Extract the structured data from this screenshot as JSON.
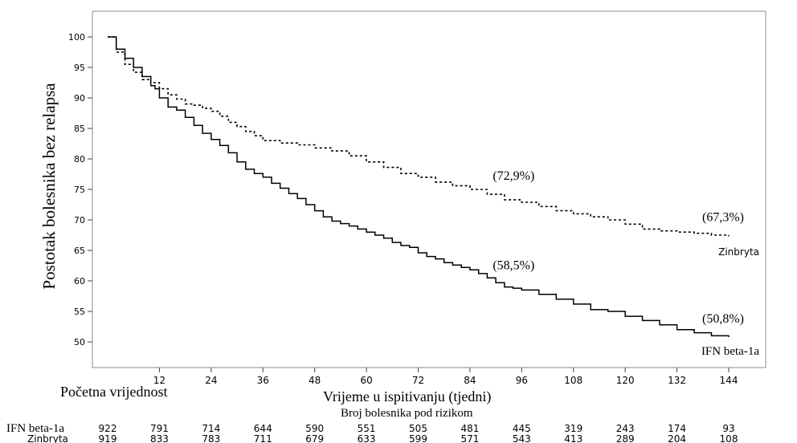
{
  "chart_data": {
    "type": "line",
    "ylabel": "Postotak bolesnika bez relapsa",
    "xlabel": "Vrijeme u ispitivanju (tjedni)",
    "baseline_label": "Početna vrijednost",
    "xlim": [
      0,
      144
    ],
    "ylim": [
      50,
      100
    ],
    "xticks": [
      12,
      24,
      36,
      48,
      60,
      72,
      84,
      96,
      108,
      120,
      132,
      144
    ],
    "yticks": [
      50,
      55,
      60,
      65,
      70,
      75,
      80,
      85,
      90,
      95,
      100
    ],
    "grid": false,
    "series": [
      {
        "name": "Zinbryta",
        "style": "dashed",
        "color": "#000000",
        "points": [
          [
            0,
            100
          ],
          [
            2,
            97.5
          ],
          [
            4,
            95.5
          ],
          [
            6,
            94.2
          ],
          [
            8,
            93
          ],
          [
            10,
            92.5
          ],
          [
            12,
            91.5
          ],
          [
            14,
            90.5
          ],
          [
            16,
            89.8
          ],
          [
            18,
            89
          ],
          [
            20,
            88.8
          ],
          [
            22,
            88.3
          ],
          [
            24,
            87.8
          ],
          [
            26,
            87
          ],
          [
            28,
            86
          ],
          [
            30,
            85.3
          ],
          [
            32,
            84.5
          ],
          [
            34,
            83.8
          ],
          [
            36,
            83
          ],
          [
            40,
            82.6
          ],
          [
            44,
            82.3
          ],
          [
            48,
            81.8
          ],
          [
            52,
            81.3
          ],
          [
            56,
            80.5
          ],
          [
            60,
            79.5
          ],
          [
            64,
            78.6
          ],
          [
            68,
            77.6
          ],
          [
            72,
            77
          ],
          [
            76,
            76.2
          ],
          [
            80,
            75.6
          ],
          [
            84,
            75
          ],
          [
            88,
            74.2
          ],
          [
            92,
            73.3
          ],
          [
            96,
            72.9
          ],
          [
            100,
            72.2
          ],
          [
            104,
            71.5
          ],
          [
            108,
            71
          ],
          [
            112,
            70.5
          ],
          [
            116,
            70
          ],
          [
            120,
            69.3
          ],
          [
            124,
            68.5
          ],
          [
            128,
            68.2
          ],
          [
            132,
            68
          ],
          [
            136,
            67.8
          ],
          [
            140,
            67.5
          ],
          [
            144,
            67.3
          ]
        ],
        "end_label": "Zinbryta"
      },
      {
        "name": "IFN beta-1a",
        "style": "solid",
        "color": "#000000",
        "points": [
          [
            0,
            100
          ],
          [
            2,
            98
          ],
          [
            4,
            96.5
          ],
          [
            6,
            95
          ],
          [
            8,
            93.5
          ],
          [
            10,
            92
          ],
          [
            11,
            91.5
          ],
          [
            12,
            90
          ],
          [
            14,
            88.5
          ],
          [
            16,
            88
          ],
          [
            18,
            86.8
          ],
          [
            20,
            85.5
          ],
          [
            22,
            84.2
          ],
          [
            24,
            83.2
          ],
          [
            26,
            82.2
          ],
          [
            28,
            81
          ],
          [
            30,
            79.5
          ],
          [
            32,
            78.3
          ],
          [
            34,
            77.6
          ],
          [
            36,
            77
          ],
          [
            38,
            76
          ],
          [
            40,
            75.2
          ],
          [
            42,
            74.3
          ],
          [
            44,
            73.5
          ],
          [
            46,
            72.5
          ],
          [
            48,
            71.5
          ],
          [
            50,
            70.5
          ],
          [
            52,
            69.8
          ],
          [
            54,
            69.4
          ],
          [
            56,
            69
          ],
          [
            58,
            68.5
          ],
          [
            60,
            68
          ],
          [
            62,
            67.5
          ],
          [
            64,
            67
          ],
          [
            66,
            66.3
          ],
          [
            68,
            65.8
          ],
          [
            70,
            65.5
          ],
          [
            72,
            64.6
          ],
          [
            74,
            64
          ],
          [
            76,
            63.6
          ],
          [
            78,
            63
          ],
          [
            80,
            62.6
          ],
          [
            82,
            62.2
          ],
          [
            84,
            61.8
          ],
          [
            86,
            61.2
          ],
          [
            88,
            60.5
          ],
          [
            90,
            59.7
          ],
          [
            92,
            59
          ],
          [
            94,
            58.8
          ],
          [
            96,
            58.5
          ],
          [
            100,
            57.8
          ],
          [
            104,
            57
          ],
          [
            108,
            56.2
          ],
          [
            112,
            55.3
          ],
          [
            116,
            55
          ],
          [
            120,
            54.2
          ],
          [
            124,
            53.5
          ],
          [
            128,
            52.8
          ],
          [
            132,
            52
          ],
          [
            136,
            51.5
          ],
          [
            140,
            51
          ],
          [
            144,
            50.8
          ]
        ],
        "end_label": "IFN beta-1a"
      }
    ],
    "annotations": [
      {
        "text": "(72,9%)",
        "x": 96,
        "y": 72.9,
        "series": "Zinbryta"
      },
      {
        "text": "(67,3%)",
        "x": 144,
        "y": 67.3,
        "series": "Zinbryta"
      },
      {
        "text": "(58,5%)",
        "x": 96,
        "y": 58.5,
        "series": "IFN beta-1a"
      },
      {
        "text": "(50,8%)",
        "x": 144,
        "y": 50.8,
        "series": "IFN beta-1a"
      }
    ],
    "risk_table": {
      "title": "Broj bolesnika pod rizikom",
      "timepoints": [
        0,
        12,
        24,
        36,
        48,
        60,
        72,
        84,
        96,
        108,
        120,
        132,
        144
      ],
      "rows": [
        {
          "label": "IFN beta-1a",
          "values": [
            "922",
            "791",
            "714",
            "644",
            "590",
            "551",
            "505",
            "481",
            "445",
            "319",
            "243",
            "174",
            "93"
          ]
        },
        {
          "label": "Zinbryta",
          "values": [
            "919",
            "833",
            "783",
            "711",
            "679",
            "633",
            "599",
            "571",
            "543",
            "413",
            "289",
            "204",
            "108"
          ]
        }
      ]
    }
  }
}
